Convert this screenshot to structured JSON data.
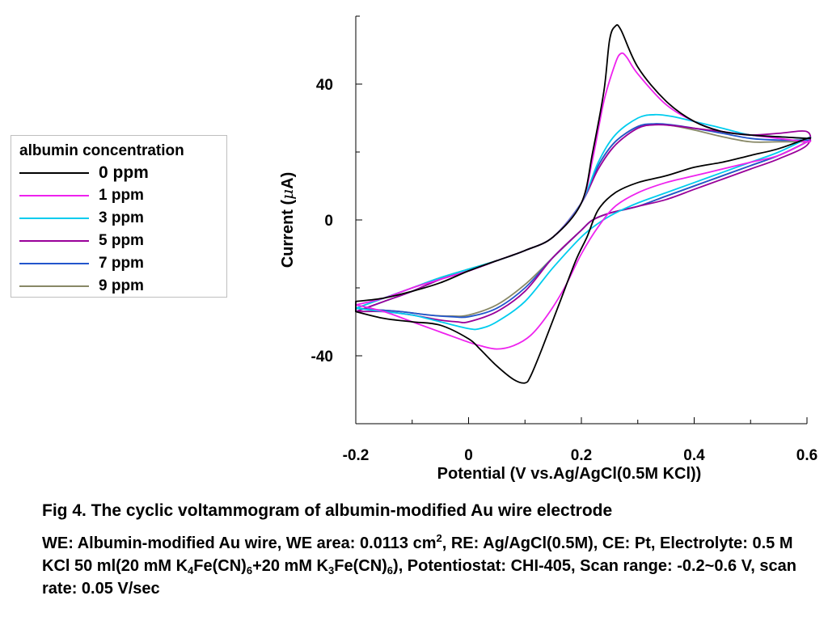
{
  "chart_data": {
    "type": "line",
    "xlabel": "Potential (V vs.Ag/AgCl(0.5M KCl))",
    "ylabel_prefix": "Current (",
    "ylabel_mu": "μ",
    "ylabel_suffix": "A)",
    "xlim": [
      -0.2,
      0.6
    ],
    "ylim": [
      -60,
      60
    ],
    "x_ticks": [
      -0.2,
      0,
      0.2,
      0.4,
      0.6
    ],
    "x_tick_labels": [
      "-0.2",
      "0",
      "0.2",
      "0.4",
      "0.6"
    ],
    "y_ticks": [
      -40,
      0,
      40
    ],
    "y_tick_labels": [
      "-40",
      "0",
      "40"
    ],
    "grid": false,
    "legend_title": "albumin concentration",
    "legend_position": "left",
    "series": [
      {
        "name": "0 ppm",
        "color": "#000000",
        "points": [
          [
            -0.2,
            -24
          ],
          [
            -0.15,
            -23
          ],
          [
            -0.1,
            -21
          ],
          [
            -0.05,
            -18.5
          ],
          [
            0,
            -15
          ],
          [
            0.05,
            -12
          ],
          [
            0.1,
            -9
          ],
          [
            0.15,
            -5
          ],
          [
            0.2,
            5
          ],
          [
            0.22,
            20
          ],
          [
            0.24,
            38
          ],
          [
            0.25,
            53
          ],
          [
            0.26,
            57
          ],
          [
            0.27,
            56
          ],
          [
            0.3,
            45
          ],
          [
            0.35,
            35
          ],
          [
            0.4,
            29
          ],
          [
            0.45,
            26
          ],
          [
            0.5,
            25
          ],
          [
            0.55,
            24.5
          ],
          [
            0.6,
            24
          ],
          [
            0.6,
            24
          ],
          [
            0.55,
            21
          ],
          [
            0.5,
            19
          ],
          [
            0.45,
            17
          ],
          [
            0.4,
            15.5
          ],
          [
            0.35,
            13
          ],
          [
            0.3,
            11
          ],
          [
            0.26,
            8
          ],
          [
            0.23,
            3
          ],
          [
            0.21,
            -5
          ],
          [
            0.19,
            -12
          ],
          [
            0.16,
            -25
          ],
          [
            0.13,
            -38
          ],
          [
            0.11,
            -46
          ],
          [
            0.1,
            -48
          ],
          [
            0.08,
            -47
          ],
          [
            0.05,
            -43
          ],
          [
            0.02,
            -38
          ],
          [
            0,
            -35
          ],
          [
            -0.05,
            -31
          ],
          [
            -0.1,
            -30
          ],
          [
            -0.15,
            -29
          ],
          [
            -0.2,
            -27
          ]
        ]
      },
      {
        "name": "1 ppm",
        "color": "#ee22ee",
        "points": [
          [
            -0.2,
            -25
          ],
          [
            -0.15,
            -23
          ],
          [
            -0.1,
            -20
          ],
          [
            -0.05,
            -17.5
          ],
          [
            0,
            -15
          ],
          [
            0.05,
            -12
          ],
          [
            0.1,
            -9
          ],
          [
            0.15,
            -5
          ],
          [
            0.2,
            5
          ],
          [
            0.22,
            18
          ],
          [
            0.24,
            35
          ],
          [
            0.26,
            46
          ],
          [
            0.27,
            49
          ],
          [
            0.28,
            48
          ],
          [
            0.3,
            43
          ],
          [
            0.35,
            34
          ],
          [
            0.4,
            29
          ],
          [
            0.45,
            26
          ],
          [
            0.5,
            25
          ],
          [
            0.55,
            24
          ],
          [
            0.6,
            23
          ],
          [
            0.6,
            23
          ],
          [
            0.55,
            19
          ],
          [
            0.5,
            17
          ],
          [
            0.45,
            15
          ],
          [
            0.4,
            13
          ],
          [
            0.35,
            11
          ],
          [
            0.3,
            8
          ],
          [
            0.26,
            4
          ],
          [
            0.23,
            -2
          ],
          [
            0.2,
            -10
          ],
          [
            0.17,
            -20
          ],
          [
            0.14,
            -28
          ],
          [
            0.11,
            -34
          ],
          [
            0.08,
            -37
          ],
          [
            0.05,
            -38
          ],
          [
            0.02,
            -37
          ],
          [
            0,
            -36
          ],
          [
            -0.05,
            -33
          ],
          [
            -0.1,
            -30
          ],
          [
            -0.15,
            -27
          ],
          [
            -0.2,
            -25
          ]
        ]
      },
      {
        "name": "3 ppm",
        "color": "#00ccee",
        "points": [
          [
            -0.2,
            -26
          ],
          [
            -0.15,
            -23
          ],
          [
            -0.1,
            -20
          ],
          [
            -0.05,
            -17
          ],
          [
            0,
            -14.5
          ],
          [
            0.05,
            -12
          ],
          [
            0.1,
            -9
          ],
          [
            0.15,
            -5
          ],
          [
            0.2,
            5
          ],
          [
            0.23,
            17
          ],
          [
            0.26,
            25
          ],
          [
            0.3,
            30
          ],
          [
            0.33,
            31
          ],
          [
            0.36,
            30.5
          ],
          [
            0.4,
            29
          ],
          [
            0.45,
            27
          ],
          [
            0.5,
            25
          ],
          [
            0.55,
            24.5
          ],
          [
            0.6,
            24
          ],
          [
            0.6,
            24
          ],
          [
            0.55,
            20
          ],
          [
            0.5,
            17
          ],
          [
            0.45,
            14
          ],
          [
            0.4,
            11
          ],
          [
            0.35,
            8
          ],
          [
            0.3,
            5
          ],
          [
            0.26,
            2
          ],
          [
            0.23,
            -1
          ],
          [
            0.2,
            -5
          ],
          [
            0.15,
            -14
          ],
          [
            0.1,
            -24
          ],
          [
            0.05,
            -30
          ],
          [
            0.02,
            -32
          ],
          [
            0,
            -32
          ],
          [
            -0.05,
            -30
          ],
          [
            -0.1,
            -28
          ],
          [
            -0.15,
            -27
          ],
          [
            -0.2,
            -26
          ]
        ]
      },
      {
        "name": "5 ppm",
        "color": "#990099",
        "points": [
          [
            -0.2,
            -27
          ],
          [
            -0.15,
            -24
          ],
          [
            -0.1,
            -21
          ],
          [
            -0.05,
            -17.5
          ],
          [
            0,
            -15
          ],
          [
            0.05,
            -12
          ],
          [
            0.1,
            -9
          ],
          [
            0.15,
            -5
          ],
          [
            0.2,
            5
          ],
          [
            0.23,
            15
          ],
          [
            0.26,
            22
          ],
          [
            0.3,
            27
          ],
          [
            0.33,
            28
          ],
          [
            0.36,
            27.8
          ],
          [
            0.4,
            27
          ],
          [
            0.45,
            26
          ],
          [
            0.5,
            25
          ],
          [
            0.55,
            25.5
          ],
          [
            0.6,
            26
          ],
          [
            0.6,
            22
          ],
          [
            0.55,
            18
          ],
          [
            0.5,
            15
          ],
          [
            0.45,
            12
          ],
          [
            0.4,
            9
          ],
          [
            0.35,
            6
          ],
          [
            0.3,
            4
          ],
          [
            0.25,
            2
          ],
          [
            0.22,
            0
          ],
          [
            0.2,
            -3
          ],
          [
            0.15,
            -11
          ],
          [
            0.1,
            -21
          ],
          [
            0.05,
            -27
          ],
          [
            0,
            -30
          ],
          [
            -0.02,
            -30
          ],
          [
            -0.05,
            -29.5
          ],
          [
            -0.1,
            -28
          ],
          [
            -0.15,
            -27
          ],
          [
            -0.2,
            -27
          ]
        ]
      },
      {
        "name": "7 ppm",
        "color": "#2255cc",
        "points": [
          [
            -0.2,
            -27
          ],
          [
            -0.15,
            -24
          ],
          [
            -0.1,
            -21
          ],
          [
            -0.05,
            -17.5
          ],
          [
            0,
            -15
          ],
          [
            0.05,
            -12
          ],
          [
            0.1,
            -9
          ],
          [
            0.15,
            -5
          ],
          [
            0.2,
            5
          ],
          [
            0.23,
            16
          ],
          [
            0.26,
            23
          ],
          [
            0.3,
            27.5
          ],
          [
            0.33,
            28.3
          ],
          [
            0.36,
            28
          ],
          [
            0.4,
            27
          ],
          [
            0.45,
            25.5
          ],
          [
            0.5,
            24
          ],
          [
            0.55,
            23.5
          ],
          [
            0.6,
            23.5
          ],
          [
            0.6,
            23
          ],
          [
            0.55,
            19
          ],
          [
            0.5,
            16
          ],
          [
            0.45,
            13
          ],
          [
            0.4,
            10
          ],
          [
            0.35,
            7
          ],
          [
            0.3,
            4
          ],
          [
            0.25,
            2
          ],
          [
            0.22,
            0
          ],
          [
            0.2,
            -3
          ],
          [
            0.15,
            -11
          ],
          [
            0.1,
            -20
          ],
          [
            0.05,
            -26
          ],
          [
            0,
            -28.5
          ],
          [
            -0.03,
            -28.5
          ],
          [
            -0.07,
            -28
          ],
          [
            -0.12,
            -27
          ],
          [
            -0.16,
            -26.5
          ],
          [
            -0.2,
            -26
          ]
        ]
      },
      {
        "name": "9 ppm",
        "color": "#888866",
        "points": [
          [
            -0.2,
            -26
          ],
          [
            -0.15,
            -23
          ],
          [
            -0.1,
            -20
          ],
          [
            -0.05,
            -17
          ],
          [
            0,
            -14.5
          ],
          [
            0.05,
            -12
          ],
          [
            0.1,
            -9
          ],
          [
            0.15,
            -5
          ],
          [
            0.2,
            5
          ],
          [
            0.23,
            16
          ],
          [
            0.26,
            23
          ],
          [
            0.3,
            27.5
          ],
          [
            0.33,
            28.2
          ],
          [
            0.36,
            27.8
          ],
          [
            0.4,
            26.5
          ],
          [
            0.45,
            24.5
          ],
          [
            0.5,
            23
          ],
          [
            0.55,
            23
          ],
          [
            0.6,
            23
          ],
          [
            0.6,
            23
          ],
          [
            0.55,
            19
          ],
          [
            0.5,
            16
          ],
          [
            0.45,
            13
          ],
          [
            0.4,
            10
          ],
          [
            0.35,
            7
          ],
          [
            0.3,
            4
          ],
          [
            0.25,
            2
          ],
          [
            0.22,
            0
          ],
          [
            0.2,
            -3
          ],
          [
            0.15,
            -11
          ],
          [
            0.1,
            -19
          ],
          [
            0.05,
            -25
          ],
          [
            0,
            -28
          ],
          [
            -0.03,
            -28.3
          ],
          [
            -0.07,
            -28
          ],
          [
            -0.12,
            -27
          ],
          [
            -0.16,
            -26.5
          ],
          [
            -0.2,
            -26
          ]
        ]
      }
    ]
  },
  "caption": {
    "title": "Fig  4. The cyclic voltammogram of albumin-modified Au wire electrode",
    "line_we": "WE: Albumin-modified  Au wire, WE area: 0.0113 cm",
    "sup_2": "2",
    "line_re": ", RE: Ag/AgCl(0.5M), CE: Pt, Electrolyte: 0.5 M KCl 50 ml(20 mM K",
    "sub_4": "4",
    "fe_cn_1": "Fe(CN)",
    "sub_6a": "6",
    "plus_k": "+20 mM K",
    "sub_3": "3",
    "fe_cn_2": "Fe(CN)",
    "sub_6b": "6",
    "tail": "), Potentiostat: CHI-405, Scan range: -0.2~0.6 V, scan rate: 0.05 V/sec"
  }
}
